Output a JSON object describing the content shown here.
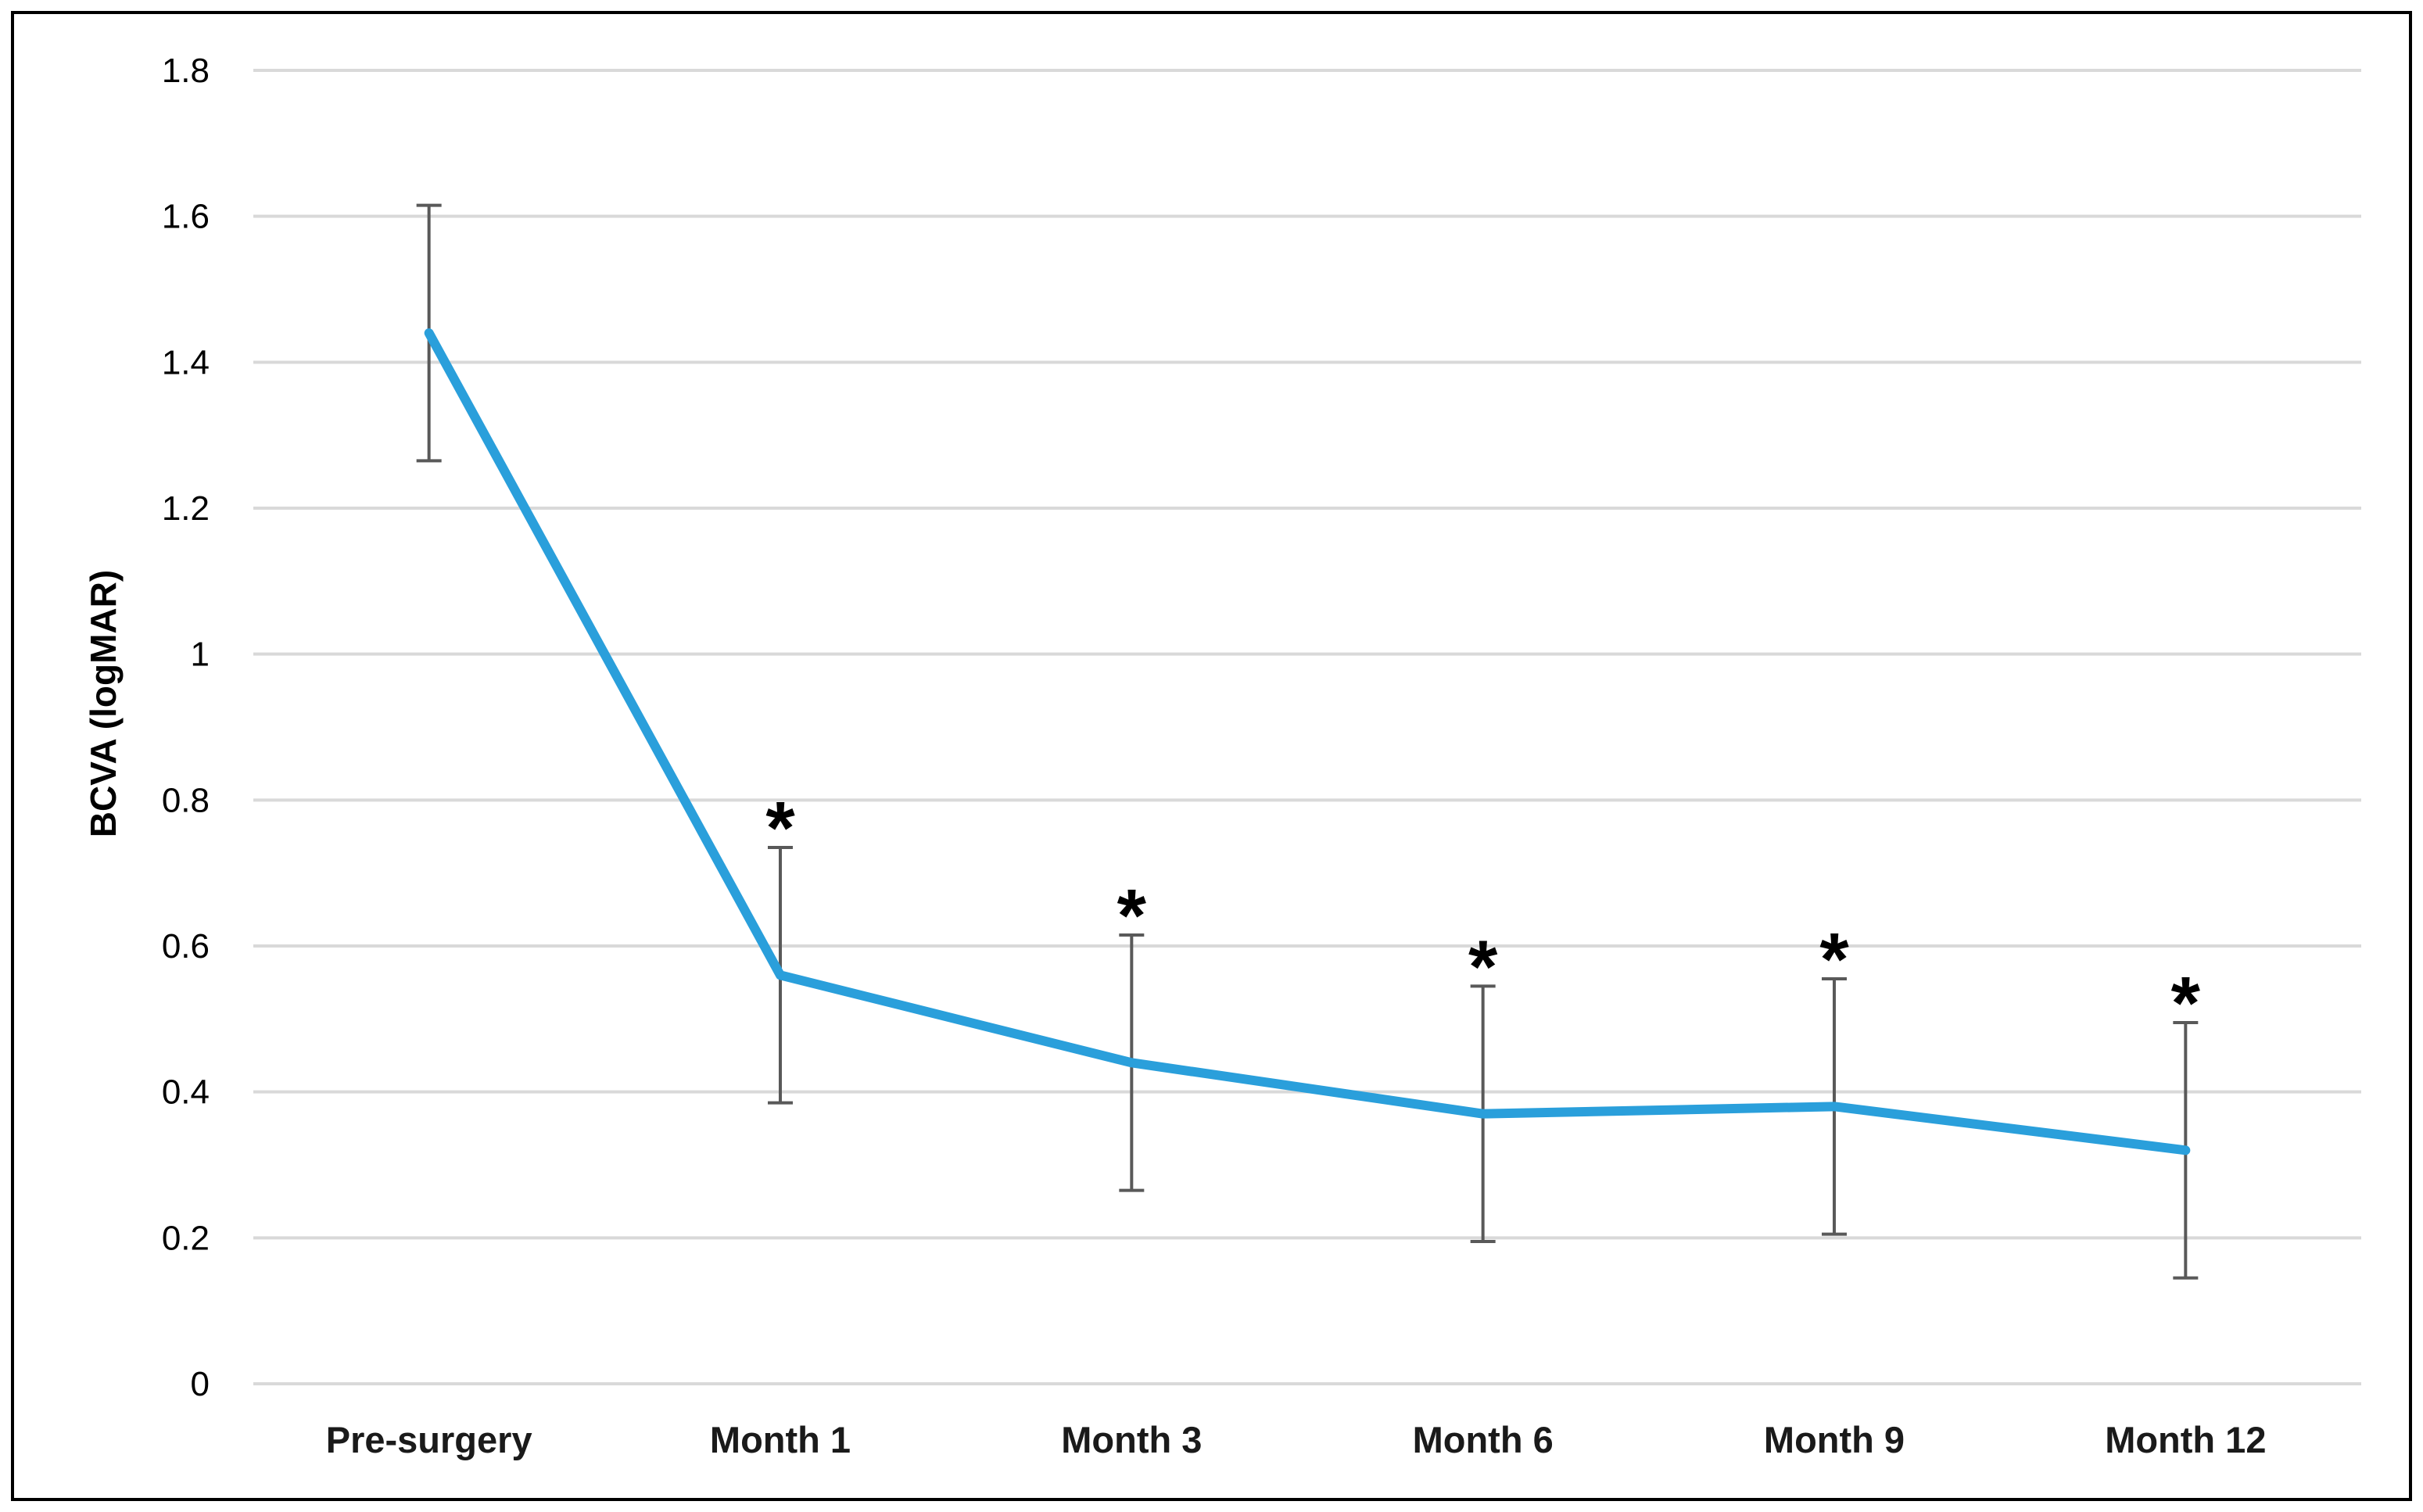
{
  "chart_data": {
    "type": "line",
    "title": "",
    "xlabel": "",
    "ylabel": "BCVA (logMAR)",
    "categories": [
      "Pre-surgery",
      "Month 1",
      "Month 3",
      "Month 6",
      "Month 9",
      "Month 12"
    ],
    "series": [
      {
        "values": [
          1.44,
          0.56,
          0.44,
          0.37,
          0.38,
          0.32
        ],
        "error_low": [
          1.265,
          0.385,
          0.265,
          0.195,
          0.205,
          0.145
        ],
        "error_high": [
          1.615,
          0.735,
          0.615,
          0.545,
          0.555,
          0.495
        ],
        "color": "#2a9fdb"
      }
    ],
    "significance_label": "*",
    "significant": [
      false,
      true,
      true,
      true,
      true,
      true
    ],
    "ylim": [
      0,
      1.8
    ],
    "yticks": [
      0,
      0.2,
      0.4,
      0.6,
      0.8,
      1,
      1.2,
      1.4,
      1.6,
      1.8
    ],
    "ytick_labels": [
      "0",
      "0.2",
      "0.4",
      "0.6",
      "0.8",
      "1",
      "1.2",
      "1.4",
      "1.6",
      "1.8"
    ],
    "grid": true,
    "legend": "none",
    "colors": {
      "line": "#2a9fdb",
      "error_bar": "#595959",
      "gridline": "#d9d9d9",
      "frame": "#000000"
    }
  }
}
